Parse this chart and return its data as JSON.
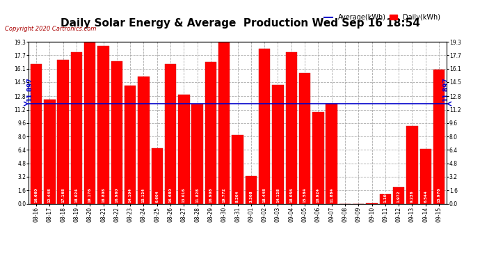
{
  "title": "Daily Solar Energy & Average  Production Wed Sep 16 18:54",
  "copyright": "Copyright 2020 Cartronics.com",
  "average_label": "Average(kWh)",
  "daily_label": "Daily(kWh)",
  "average_value": 11.897,
  "categories": [
    "08-16",
    "08-17",
    "08-18",
    "08-19",
    "08-20",
    "08-21",
    "08-22",
    "08-23",
    "08-24",
    "08-25",
    "08-26",
    "08-27",
    "08-28",
    "08-29",
    "08-30",
    "08-31",
    "09-01",
    "09-02",
    "09-03",
    "09-04",
    "09-05",
    "09-06",
    "09-07",
    "09-08",
    "09-09",
    "09-10",
    "09-11",
    "09-12",
    "09-13",
    "09-14",
    "09-15"
  ],
  "values": [
    16.66,
    12.448,
    17.168,
    18.024,
    19.176,
    18.808,
    16.96,
    14.104,
    15.124,
    6.604,
    16.68,
    13.016,
    11.828,
    16.908,
    19.772,
    8.204,
    3.308,
    18.448,
    14.128,
    18.056,
    15.584,
    10.924,
    11.884,
    0.0,
    0.0,
    0.052,
    1.1,
    1.972,
    9.236,
    6.544,
    15.976
  ],
  "bar_color": "#ff0000",
  "bar_edge_color": "#cc0000",
  "average_line_color": "#0000cc",
  "background_color": "#ffffff",
  "grid_color": "#aaaaaa",
  "ylim": [
    0,
    19.3
  ],
  "yticks": [
    0.0,
    1.6,
    3.2,
    4.8,
    6.4,
    8.0,
    9.6,
    11.2,
    12.8,
    14.5,
    16.1,
    17.7,
    19.3
  ],
  "title_fontsize": 11,
  "tick_fontsize": 5.5,
  "avg_fontsize": 6.5,
  "copyright_fontsize": 6,
  "legend_fontsize": 7
}
